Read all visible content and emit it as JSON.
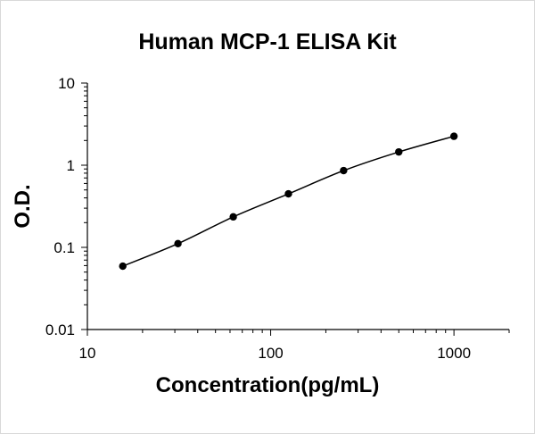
{
  "chart_data": {
    "type": "line",
    "title": "Human MCP-1 ELISA Kit",
    "xlabel": "Concentration(pg/mL)",
    "ylabel": "O.D.",
    "x_scale": "log",
    "y_scale": "log",
    "xlim": [
      10,
      2000
    ],
    "ylim": [
      0.01,
      10
    ],
    "x_ticks": [
      10,
      100,
      1000
    ],
    "x_tick_labels": [
      "10",
      "100",
      "1000"
    ],
    "y_ticks": [
      0.01,
      0.1,
      1,
      10
    ],
    "y_tick_labels": [
      "0.01",
      "0.1",
      "1",
      "10"
    ],
    "grid": false,
    "legend": "none",
    "series": [
      {
        "x": [
          15.6,
          31.2,
          62.5,
          125,
          250,
          500,
          1000
        ],
        "y": [
          0.059,
          0.111,
          0.235,
          0.448,
          0.86,
          1.45,
          2.25
        ],
        "color": "#000000"
      }
    ]
  }
}
